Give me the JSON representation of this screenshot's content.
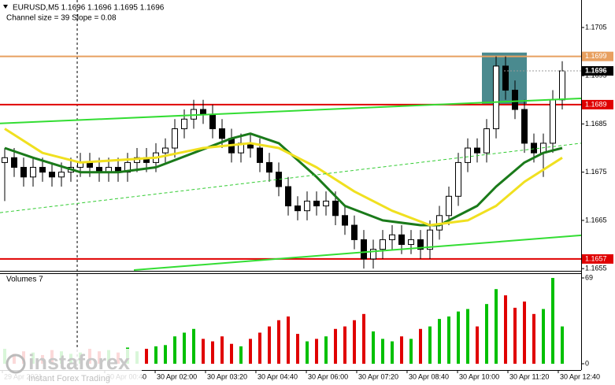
{
  "chart_data": {
    "type": "candlestick",
    "title": "EURUSD,M5  1.1696 1.1696 1.1695 1.1696",
    "subtitle": "Channel size = 39 Slope = 0.08",
    "open": [
      1.1677,
      1.1678,
      1.1676,
      1.1674,
      1.1676,
      1.1675,
      1.1674,
      1.1675,
      1.1676,
      1.1677,
      1.1676,
      1.1675,
      1.1676,
      1.1675,
      1.1677,
      1.1678,
      1.1677,
      1.1679,
      1.168,
      1.1684,
      1.1686,
      1.1688,
      1.1687,
      1.1684,
      1.1682,
      1.1679,
      1.1681,
      1.168,
      1.1677,
      1.1675,
      1.1672,
      1.1668,
      1.1667,
      1.1669,
      1.1668,
      1.1669,
      1.1666,
      1.1664,
      1.1661,
      1.1657,
      1.1659,
      1.1661,
      1.1662,
      1.166,
      1.1661,
      1.1659,
      1.1663,
      1.1666,
      1.167,
      1.1677,
      1.168,
      1.1679,
      1.1684,
      1.1697,
      1.1692,
      1.1688,
      1.1681,
      1.1679,
      1.1681,
      1.169
    ],
    "high": [
      1.168,
      1.168,
      1.1678,
      1.1678,
      1.1678,
      1.1677,
      1.1677,
      1.1678,
      1.1679,
      1.1679,
      1.1678,
      1.1678,
      1.1678,
      1.1679,
      1.168,
      1.168,
      1.1681,
      1.1682,
      1.1686,
      1.1688,
      1.169,
      1.169,
      1.1689,
      1.1686,
      1.1684,
      1.1683,
      1.1683,
      1.1682,
      1.1679,
      1.1677,
      1.1674,
      1.167,
      1.1671,
      1.1671,
      1.1671,
      1.1671,
      1.1668,
      1.1666,
      1.1663,
      1.1661,
      1.1663,
      1.1664,
      1.1664,
      1.1663,
      1.1663,
      1.1665,
      1.1668,
      1.1672,
      1.1679,
      1.1682,
      1.1682,
      1.1686,
      1.1699,
      1.1699,
      1.1694,
      1.169,
      1.1683,
      1.1683,
      1.1692,
      1.1698
    ],
    "low": [
      1.1669,
      1.1674,
      1.1672,
      1.1672,
      1.1673,
      1.1672,
      1.1672,
      1.1673,
      1.1674,
      1.1674,
      1.1673,
      1.1673,
      1.1673,
      1.1673,
      1.1675,
      1.1675,
      1.1675,
      1.1677,
      1.1678,
      1.1682,
      1.1684,
      1.1685,
      1.1682,
      1.168,
      1.1677,
      1.1677,
      1.1678,
      1.1675,
      1.1673,
      1.167,
      1.1666,
      1.1665,
      1.1665,
      1.1666,
      1.1666,
      1.1664,
      1.1662,
      1.1659,
      1.1655,
      1.1655,
      1.1657,
      1.1659,
      1.1658,
      1.1658,
      1.1657,
      1.1657,
      1.1661,
      1.1664,
      1.1668,
      1.1675,
      1.1677,
      1.1677,
      1.1682,
      1.169,
      1.1686,
      1.1679,
      1.1677,
      1.1674,
      1.1679,
      1.1688
    ],
    "close": [
      1.1678,
      1.1676,
      1.1674,
      1.1676,
      1.1675,
      1.1674,
      1.1675,
      1.1676,
      1.1677,
      1.1676,
      1.1675,
      1.1676,
      1.1675,
      1.1677,
      1.1678,
      1.1677,
      1.1679,
      1.168,
      1.1684,
      1.1686,
      1.1688,
      1.1687,
      1.1684,
      1.1682,
      1.1679,
      1.1681,
      1.168,
      1.1677,
      1.1675,
      1.1672,
      1.1668,
      1.1667,
      1.1669,
      1.1668,
      1.1669,
      1.1666,
      1.1664,
      1.1661,
      1.1657,
      1.1659,
      1.1661,
      1.1662,
      1.166,
      1.1661,
      1.1659,
      1.1663,
      1.1666,
      1.167,
      1.1677,
      1.168,
      1.1679,
      1.1684,
      1.1697,
      1.1692,
      1.1688,
      1.1681,
      1.1679,
      1.1681,
      1.169,
      1.1696
    ],
    "up_color": "#ffffff",
    "down_color": "#000000",
    "ylim": [
      1.16547,
      1.17107
    ],
    "yticks": [
      1.1655,
      1.1665,
      1.1675,
      1.1685,
      1.1695,
      1.1705
    ],
    "xticks": [
      {
        "value": -0.25,
        "label": "29 Apr 2021"
      },
      {
        "value": 10.58,
        "label": "30 Apr 00:40"
      },
      {
        "value": 15.92,
        "label": "30 Apr 02:00"
      },
      {
        "value": 21.25,
        "label": "30 Apr 03:20"
      },
      {
        "value": 26.58,
        "label": "30 Apr 04:40"
      },
      {
        "value": 31.92,
        "label": "30 Apr 06:00"
      },
      {
        "value": 37.25,
        "label": "30 Apr 07:20"
      },
      {
        "value": 42.58,
        "label": "30 Apr 08:40"
      },
      {
        "value": 47.92,
        "label": "30 Apr 10:00"
      },
      {
        "value": 53.25,
        "label": "30 Apr 11:20"
      },
      {
        "value": 58.58,
        "label": "30 Apr 12:40"
      }
    ],
    "day_separator": 7.67,
    "lines": [
      {
        "color": "#1a7a1a",
        "width": 3,
        "x": [
          0,
          3,
          8,
          12,
          16,
          20,
          24,
          26,
          29,
          33,
          36,
          40,
          44,
          46,
          50,
          52,
          55,
          57,
          59
        ],
        "values": [
          1.168,
          1.1678,
          1.1675,
          1.1675,
          1.1676,
          1.1679,
          1.1682,
          1.1683,
          1.1681,
          1.1674,
          1.1668,
          1.1665,
          1.1664,
          1.1664,
          1.1668,
          1.1672,
          1.1677,
          1.1679,
          1.168
        ]
      },
      {
        "color": "#f0e020",
        "width": 3,
        "x": [
          0,
          4,
          8,
          16,
          21,
          26,
          29,
          33,
          37,
          41,
          45,
          49,
          52,
          55,
          59
        ],
        "values": [
          1.1684,
          1.1679,
          1.1677,
          1.1678,
          1.168,
          1.1681,
          1.168,
          1.1676,
          1.1671,
          1.1667,
          1.1664,
          1.1665,
          1.1668,
          1.1673,
          1.1678
        ]
      },
      {
        "color": "#33dd33",
        "width": 2,
        "x": [
          -0.5,
          61
        ],
        "values": [
          1.16851,
          1.16903
        ]
      },
      {
        "color": "#33dd33",
        "width": 2,
        "x": [
          13.67,
          61
        ],
        "values": [
          1.16547,
          1.16619
        ]
      },
      {
        "color": "#33cc33",
        "width": 1,
        "dashed": true,
        "x": [
          -0.5,
          61
        ],
        "values": [
          1.16666,
          1.1681
        ]
      }
    ],
    "zone": {
      "color": "#4a8a8f",
      "x": [
        50.5,
        55.25
      ],
      "values": [
        1.16998,
        1.1689
      ]
    },
    "levels": [
      {
        "value": 1.1699,
        "color": "#e8a060"
      },
      {
        "value": 1.1689,
        "color": "#e00000"
      },
      {
        "value": 1.1657,
        "color": "#e00000"
      }
    ],
    "current_price": 1.1696,
    "volume": {
      "title": "Volumes 7",
      "values": [
        12,
        8,
        10,
        9,
        7,
        11,
        10,
        8,
        9,
        12,
        10,
        11,
        9,
        13,
        10,
        12,
        14,
        15,
        22,
        25,
        28,
        20,
        18,
        22,
        16,
        14,
        20,
        25,
        30,
        35,
        38,
        24,
        18,
        20,
        22,
        28,
        30,
        35,
        40,
        26,
        20,
        18,
        22,
        20,
        28,
        30,
        36,
        38,
        42,
        44,
        30,
        48,
        60,
        55,
        45,
        50,
        40,
        44,
        69,
        30
      ],
      "up_color": "#00c000",
      "down_color": "#e00000",
      "ylim": [
        0,
        69
      ],
      "yticks": [
        0,
        69
      ]
    },
    "watermark": {
      "brand": "instaforex",
      "tagline": "Instant Forex Trading"
    }
  }
}
